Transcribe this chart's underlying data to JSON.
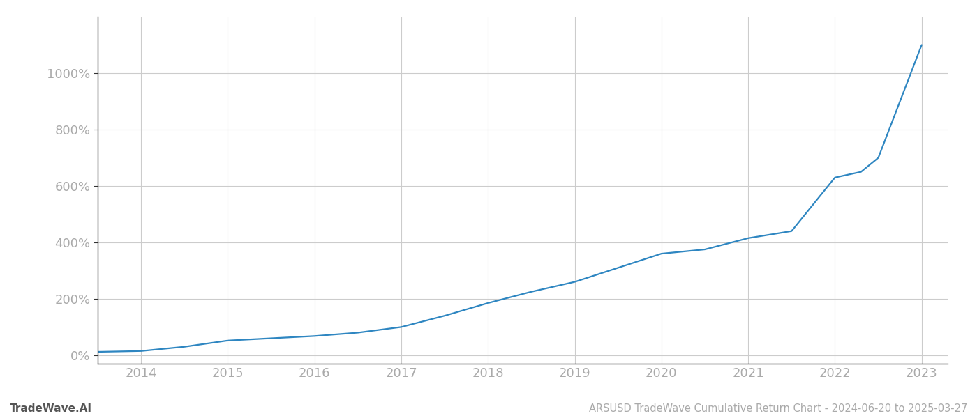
{
  "title": "ARSUSD TradeWave Cumulative Return Chart - 2024-06-20 to 2025-03-27",
  "watermark": "TradeWave.AI",
  "line_color": "#2e86c1",
  "background_color": "#ffffff",
  "grid_color": "#cccccc",
  "x_years": [
    2013.5,
    2014.0,
    2014.5,
    2015.0,
    2015.5,
    2016.0,
    2016.5,
    2017.0,
    2017.5,
    2018.0,
    2018.5,
    2019.0,
    2019.5,
    2020.0,
    2020.5,
    2021.0,
    2021.3,
    2021.5,
    2022.0,
    2022.3,
    2022.5,
    2023.0
  ],
  "y_values": [
    12,
    15,
    30,
    52,
    60,
    68,
    80,
    100,
    140,
    185,
    225,
    260,
    310,
    360,
    375,
    415,
    430,
    440,
    630,
    650,
    700,
    1100
  ],
  "xlim": [
    2013.5,
    2023.3
  ],
  "ylim": [
    -30,
    1200
  ],
  "yticks": [
    0,
    200,
    400,
    600,
    800,
    1000
  ],
  "xticks": [
    2014,
    2015,
    2016,
    2017,
    2018,
    2019,
    2020,
    2021,
    2022,
    2023
  ],
  "line_width": 1.6,
  "title_fontsize": 10.5,
  "watermark_fontsize": 11,
  "tick_fontsize": 13
}
